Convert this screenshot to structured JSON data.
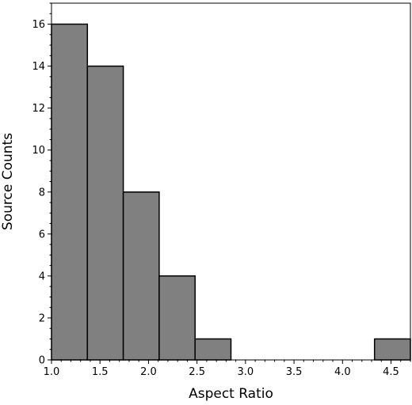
{
  "chart_data": {
    "type": "bar",
    "title": "",
    "xlabel": "Aspect Ratio",
    "ylabel": "Source Counts",
    "xlim": [
      1.0,
      4.7
    ],
    "ylim": [
      0,
      17
    ],
    "bins": [
      {
        "x0": 1.0,
        "x1": 1.37,
        "count": 16
      },
      {
        "x0": 1.37,
        "x1": 1.74,
        "count": 14
      },
      {
        "x0": 1.74,
        "x1": 2.11,
        "count": 8
      },
      {
        "x0": 2.11,
        "x1": 2.48,
        "count": 4
      },
      {
        "x0": 2.48,
        "x1": 2.85,
        "count": 1
      },
      {
        "x0": 2.85,
        "x1": 3.22,
        "count": 0
      },
      {
        "x0": 3.22,
        "x1": 3.59,
        "count": 0
      },
      {
        "x0": 3.59,
        "x1": 3.96,
        "count": 0
      },
      {
        "x0": 3.96,
        "x1": 4.33,
        "count": 0
      },
      {
        "x0": 4.33,
        "x1": 4.7,
        "count": 1
      }
    ],
    "xticks": [
      {
        "value": 1.0,
        "label": "1.0"
      },
      {
        "value": 1.5,
        "label": "1.5"
      },
      {
        "value": 2.0,
        "label": "2.0"
      },
      {
        "value": 2.5,
        "label": "2.5"
      },
      {
        "value": 3.0,
        "label": "3.0"
      },
      {
        "value": 3.5,
        "label": "3.5"
      },
      {
        "value": 4.0,
        "label": "4.0"
      },
      {
        "value": 4.5,
        "label": "4.5"
      }
    ],
    "yticks": [
      {
        "value": 0,
        "label": "0"
      },
      {
        "value": 2,
        "label": "2"
      },
      {
        "value": 4,
        "label": "4"
      },
      {
        "value": 6,
        "label": "6"
      },
      {
        "value": 8,
        "label": "8"
      },
      {
        "value": 10,
        "label": "10"
      },
      {
        "value": 12,
        "label": "12"
      },
      {
        "value": 14,
        "label": "14"
      },
      {
        "value": 16,
        "label": "16"
      }
    ],
    "bar_color": "#808080",
    "edge_color": "#000000",
    "grid": false,
    "legend": "none"
  }
}
